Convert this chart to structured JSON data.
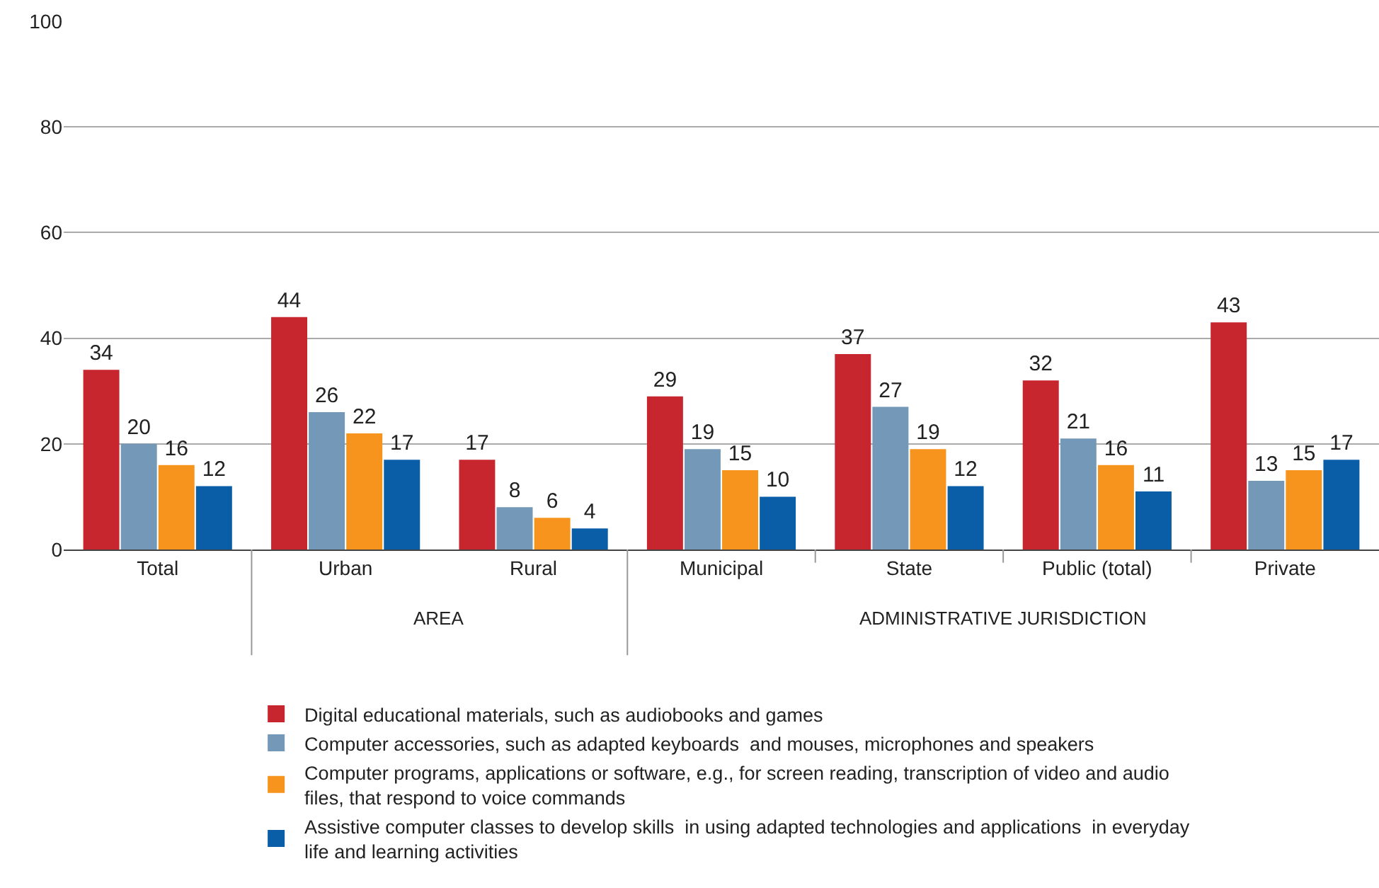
{
  "chart_data": {
    "type": "bar",
    "categories": [
      "Total",
      "Urban",
      "Rural",
      "Municipal",
      "State",
      "Public (total)",
      "Private"
    ],
    "series": [
      {
        "name": "Digital educational materials, such as audiobooks and games",
        "color": "#c8262e",
        "values": [
          34,
          44,
          17,
          29,
          37,
          32,
          43
        ]
      },
      {
        "name": "Computer accessories, such as adapted keyboards  and mouses, microphones and speakers",
        "color": "#7499b8",
        "values": [
          20,
          26,
          8,
          19,
          27,
          21,
          13
        ]
      },
      {
        "name": "Computer programs, applications or software, e.g., for screen reading, transcription of video and audio files, that respond to voice commands",
        "color": "#f7941d",
        "values": [
          16,
          22,
          6,
          15,
          19,
          16,
          15
        ]
      },
      {
        "name": "Assistive computer classes to develop skills  in using adapted technologies and applications  in everyday life and learning activities",
        "color": "#0a5ea8",
        "values": [
          12,
          17,
          4,
          10,
          12,
          11,
          17
        ]
      }
    ],
    "annotations": [
      "AREA",
      "ADMINISTRATIVE JURISDICTION"
    ],
    "ylim": [
      0,
      100
    ],
    "yticks": [
      0,
      20,
      40,
      60,
      80,
      100
    ],
    "grid": "y",
    "legend": "bottom",
    "data_labels": true
  }
}
